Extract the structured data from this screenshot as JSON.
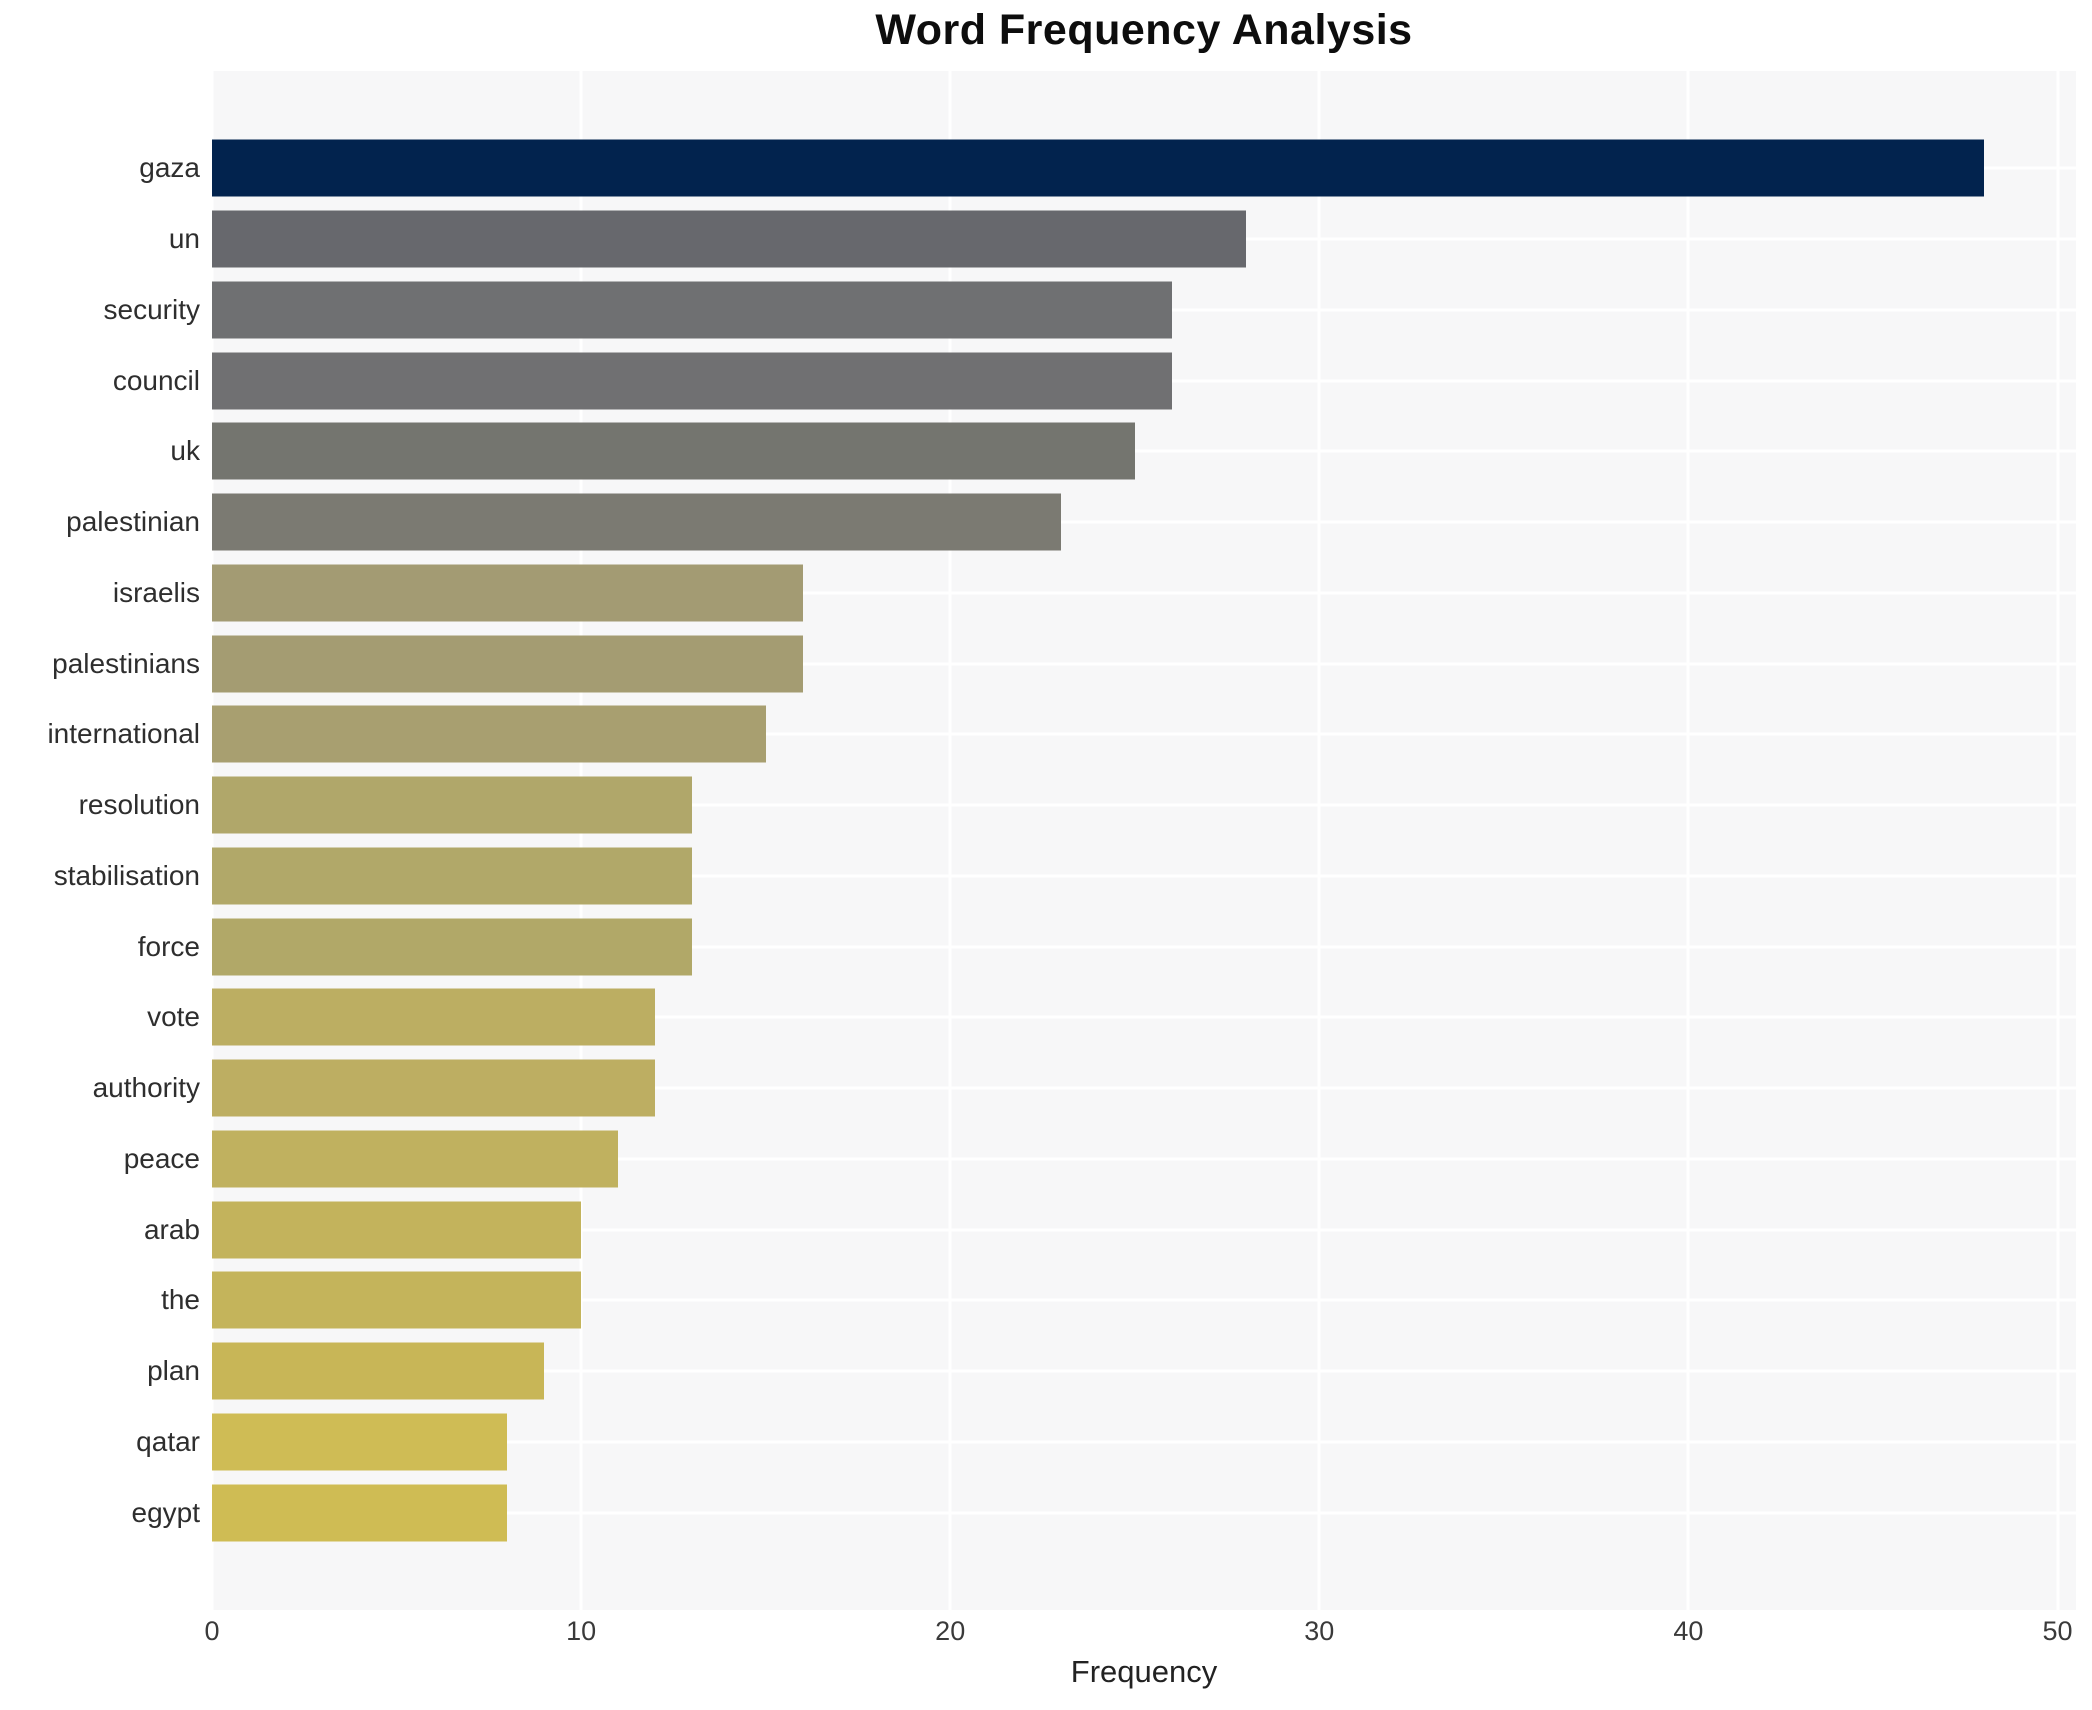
{
  "chart_data": {
    "type": "bar",
    "orientation": "horizontal",
    "title": "Word Frequency Analysis",
    "xlabel": "Frequency",
    "ylabel": "",
    "categories": [
      "gaza",
      "un",
      "security",
      "council",
      "uk",
      "palestinian",
      "israelis",
      "palestinians",
      "international",
      "resolution",
      "stabilisation",
      "force",
      "vote",
      "authority",
      "peace",
      "arab",
      "the",
      "plan",
      "qatar",
      "egypt"
    ],
    "values": [
      48,
      28,
      26,
      26,
      25,
      23,
      16,
      16,
      15,
      13,
      13,
      13,
      12,
      12,
      11,
      10,
      10,
      9,
      8,
      8
    ],
    "bar_colors": [
      "#02234e",
      "#67686d",
      "#6f7072",
      "#707072",
      "#74756f",
      "#7b7a72",
      "#a39b73",
      "#a49c72",
      "#a89f70",
      "#b0a76a",
      "#b1a869",
      "#b1a868",
      "#bcae62",
      "#bdae62",
      "#c0b15f",
      "#c3b35c",
      "#c4b45b",
      "#c8b657",
      "#cfbc55",
      "#cfbc54"
    ],
    "xlim": [
      0,
      50.5
    ],
    "xticks": [
      0,
      10,
      20,
      30,
      40,
      50
    ],
    "grid": true,
    "legend": "none",
    "panel_bg": "#f7f7f8",
    "grid_color": "#ffffff"
  }
}
